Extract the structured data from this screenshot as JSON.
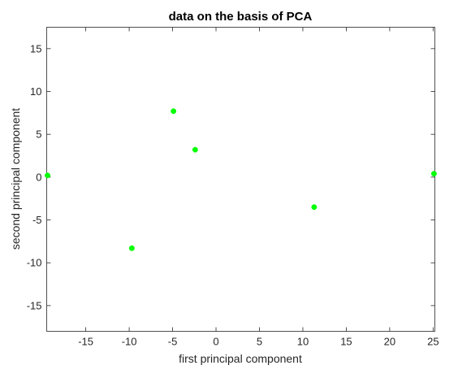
{
  "chart_data": {
    "type": "scatter",
    "title": "data on the basis of PCA",
    "xlabel": "first principal component",
    "ylabel": "second principal component",
    "xlim": [
      -19.5,
      25.2
    ],
    "ylim": [
      -18,
      17.5
    ],
    "xticks": [
      -15,
      -10,
      -5,
      0,
      5,
      10,
      15,
      20,
      25
    ],
    "yticks": [
      -15,
      -10,
      -5,
      0,
      5,
      10,
      15
    ],
    "grid": false,
    "marker_color": "#00ff00",
    "series": [
      {
        "points": [
          {
            "x": -19.4,
            "y": 0.2
          },
          {
            "x": -9.7,
            "y": -8.3
          },
          {
            "x": -4.9,
            "y": 7.7
          },
          {
            "x": -2.4,
            "y": 3.2
          },
          {
            "x": 11.3,
            "y": -3.5
          },
          {
            "x": 25.1,
            "y": 0.4
          }
        ]
      }
    ]
  }
}
